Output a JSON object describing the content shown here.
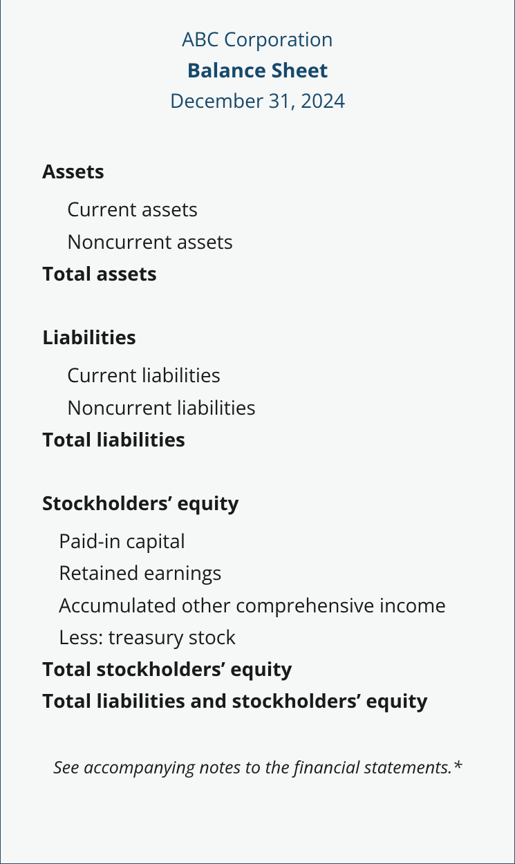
{
  "header": {
    "company_name": "ABC Corporation",
    "doc_title": "Balance Sheet",
    "doc_date": "December 31, 2024"
  },
  "sections": {
    "assets": {
      "heading": "Assets",
      "items": [
        "Current assets",
        "Noncurrent assets"
      ],
      "total": "Total assets"
    },
    "liabilities": {
      "heading": "Liabilities",
      "items": [
        "Current liabilities",
        "Noncurrent liabilities"
      ],
      "total": "Total liabilities"
    },
    "equity": {
      "heading": "Stockholders’ equity",
      "items": [
        "Paid-in capital",
        "Retained earnings",
        "Accumulated other comprehensive income",
        "Less: treasury stock"
      ],
      "total": "Total stockholders’ equity",
      "grand_total": "Total liabilities and stockholders’ equity"
    }
  },
  "footnote": "See accompanying notes to the financial statements.*",
  "colors": {
    "header_text": "#15496b",
    "body_text": "#1a1a1a",
    "background": "#f6f7f7",
    "border": "#2a4d5e"
  },
  "typography": {
    "header_fontsize": 28,
    "title_fontsize": 29,
    "body_fontsize": 28,
    "footnote_fontsize": 25,
    "heading_weight": 700,
    "item_weight": 400
  }
}
